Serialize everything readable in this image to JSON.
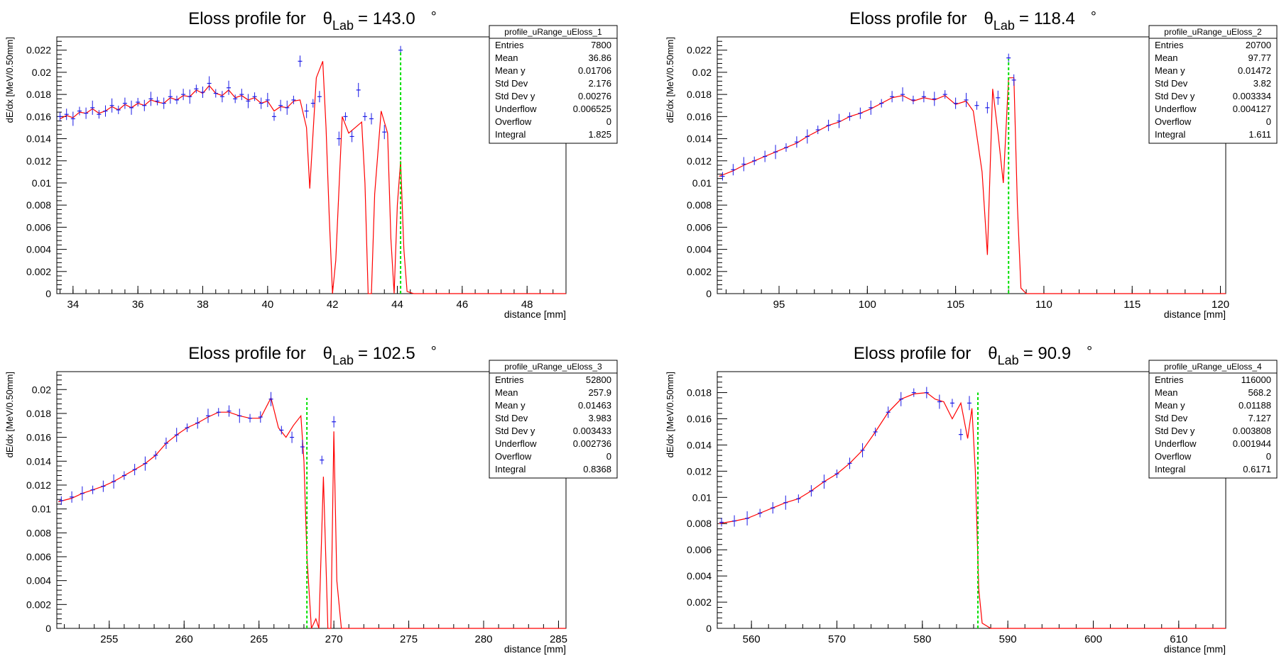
{
  "chart_data": [
    {
      "type": "line",
      "title_prefix": "Eloss profile for",
      "theta_symbol": "θ",
      "theta_subscript": "Lab",
      "angle": "= 143.0",
      "degree_symbol": "°",
      "xlabel": "distance [mm]",
      "ylabel": "dE/dx [MeV/0.50mm]",
      "xlim": [
        33.5,
        49.2
      ],
      "ylim": [
        0,
        0.0232
      ],
      "xticks": [
        "34",
        "36",
        "38",
        "40",
        "42",
        "44",
        "46",
        "48"
      ],
      "yticks": [
        "0",
        "0.002",
        "0.004",
        "0.006",
        "0.008",
        "0.01",
        "0.012",
        "0.014",
        "0.016",
        "0.018",
        "0.02",
        "0.022"
      ],
      "green_line_x": 44.1,
      "green_line_top": 0.022,
      "stats": {
        "name": "profile_uRange_uEloss_1",
        "rows": [
          [
            "Entries",
            "7800"
          ],
          [
            "Mean",
            "36.86"
          ],
          [
            "Mean y",
            "0.01706"
          ],
          [
            "Std Dev",
            "2.176"
          ],
          [
            "Std Dev y",
            "0.00276"
          ],
          [
            "Underflow",
            "0.006525"
          ],
          [
            "Overflow",
            "0"
          ],
          [
            "Integral",
            "1.825"
          ]
        ]
      },
      "series": [
        {
          "legend": "profile points",
          "color": "#1a1ae6",
          "x": [
            33.6,
            33.8,
            34.0,
            34.2,
            34.4,
            34.6,
            34.8,
            35.0,
            35.2,
            35.4,
            35.6,
            35.8,
            36.0,
            36.2,
            36.4,
            36.6,
            36.8,
            37.0,
            37.2,
            37.4,
            37.6,
            37.8,
            38.0,
            38.2,
            38.4,
            38.6,
            38.8,
            39.0,
            39.2,
            39.4,
            39.6,
            39.8,
            40.0,
            40.2,
            40.4,
            40.6,
            40.8,
            41.0,
            41.2,
            41.4,
            41.6,
            42.2,
            42.4,
            42.6,
            42.8,
            43.0,
            43.2,
            43.6,
            44.1
          ],
          "y": [
            0.016,
            0.0162,
            0.0158,
            0.0165,
            0.0163,
            0.0168,
            0.0162,
            0.0165,
            0.017,
            0.0166,
            0.0172,
            0.0168,
            0.0173,
            0.017,
            0.0176,
            0.0174,
            0.0172,
            0.0178,
            0.0175,
            0.018,
            0.0178,
            0.0185,
            0.0182,
            0.019,
            0.0181,
            0.0178,
            0.0186,
            0.0176,
            0.018,
            0.0174,
            0.0178,
            0.0172,
            0.0175,
            0.016,
            0.017,
            0.0168,
            0.0175,
            0.021,
            0.0165,
            0.0172,
            0.0178,
            0.014,
            0.016,
            0.0142,
            0.0184,
            0.016,
            0.0158,
            0.0146,
            0.022
          ]
        },
        {
          "legend": "profile curve",
          "color": "#ff0000",
          "x": [
            33.6,
            33.8,
            34.0,
            34.2,
            34.4,
            34.6,
            34.8,
            35.0,
            35.2,
            35.4,
            35.6,
            35.8,
            36.0,
            36.2,
            36.4,
            36.6,
            36.8,
            37.0,
            37.2,
            37.4,
            37.6,
            37.8,
            38.0,
            38.2,
            38.4,
            38.6,
            38.8,
            39.0,
            39.2,
            39.4,
            39.6,
            39.8,
            40.0,
            40.2,
            40.4,
            40.6,
            40.8,
            41.0,
            41.2,
            41.3,
            41.5,
            41.7,
            41.8,
            41.9,
            42.0,
            42.1,
            42.3,
            42.5,
            42.7,
            42.9,
            43.0,
            43.1,
            43.2,
            43.3,
            43.5,
            43.7,
            43.8,
            43.9,
            44.0,
            44.1,
            44.2,
            44.3,
            44.5,
            49.2
          ],
          "y": [
            0.0158,
            0.0161,
            0.0159,
            0.0164,
            0.0163,
            0.0167,
            0.0163,
            0.0165,
            0.0169,
            0.0166,
            0.0171,
            0.0168,
            0.0172,
            0.017,
            0.0175,
            0.0173,
            0.0172,
            0.0177,
            0.0175,
            0.0179,
            0.0178,
            0.0184,
            0.0181,
            0.0188,
            0.0181,
            0.0179,
            0.0184,
            0.0177,
            0.0179,
            0.0175,
            0.0177,
            0.0172,
            0.0174,
            0.0165,
            0.0169,
            0.0168,
            0.0174,
            0.0175,
            0.015,
            0.0095,
            0.0195,
            0.021,
            0.015,
            0.007,
            0.0,
            0.003,
            0.016,
            0.0145,
            0.015,
            0.0155,
            0.01,
            0.0,
            0.0,
            0.009,
            0.0165,
            0.0145,
            0.005,
            0.0,
            0.008,
            0.012,
            0.004,
            0.0002,
            0.0,
            0.0
          ]
        }
      ]
    },
    {
      "type": "line",
      "title_prefix": "Eloss profile for",
      "theta_symbol": "θ",
      "theta_subscript": "Lab",
      "angle": "= 118.4",
      "degree_symbol": "°",
      "xlabel": "distance [mm]",
      "ylabel": "dE/dx [MeV/0.50mm]",
      "xlim": [
        91.5,
        120.3
      ],
      "ylim": [
        0,
        0.0232
      ],
      "xticks": [
        "95",
        "100",
        "105",
        "110",
        "115",
        "120"
      ],
      "yticks": [
        "0",
        "0.002",
        "0.004",
        "0.006",
        "0.008",
        "0.01",
        "0.012",
        "0.014",
        "0.016",
        "0.018",
        "0.02",
        "0.022"
      ],
      "green_line_x": 108.0,
      "green_line_top": 0.0212,
      "stats": {
        "name": "profile_uRange_uEloss_2",
        "rows": [
          [
            "Entries",
            "20700"
          ],
          [
            "Mean",
            "97.77"
          ],
          [
            "Mean y",
            "0.01472"
          ],
          [
            "Std Dev",
            "3.82"
          ],
          [
            "Std Dev y",
            "0.003334"
          ],
          [
            "Underflow",
            "0.004127"
          ],
          [
            "Overflow",
            "0"
          ],
          [
            "Integral",
            "1.611"
          ]
        ]
      },
      "series": [
        {
          "legend": "profile points",
          "color": "#1a1ae6",
          "x": [
            91.8,
            92.4,
            93.0,
            93.6,
            94.2,
            94.8,
            95.4,
            96.0,
            96.6,
            97.2,
            97.8,
            98.4,
            99.0,
            99.6,
            100.2,
            100.8,
            101.4,
            102.0,
            102.6,
            103.2,
            103.8,
            104.4,
            105.0,
            105.6,
            106.2,
            106.8,
            107.4,
            108.0,
            108.3
          ],
          "y": [
            0.0106,
            0.0112,
            0.0117,
            0.012,
            0.0124,
            0.0128,
            0.0132,
            0.0137,
            0.0142,
            0.0148,
            0.0152,
            0.0156,
            0.016,
            0.0163,
            0.0168,
            0.0172,
            0.0178,
            0.018,
            0.0175,
            0.0178,
            0.0176,
            0.018,
            0.0172,
            0.0175,
            0.017,
            0.0168,
            0.0177,
            0.0213,
            0.0193
          ]
        },
        {
          "legend": "profile curve",
          "color": "#ff0000",
          "x": [
            91.6,
            92.4,
            93.0,
            93.6,
            94.2,
            94.8,
            95.4,
            96.0,
            96.6,
            97.2,
            97.8,
            98.4,
            99.0,
            99.6,
            100.2,
            100.8,
            101.4,
            102.0,
            102.6,
            103.2,
            103.8,
            104.4,
            105.0,
            105.6,
            106.0,
            106.5,
            106.8,
            107.1,
            107.4,
            107.7,
            108.0,
            108.3,
            108.5,
            108.7,
            109.0,
            120.3
          ],
          "y": [
            0.0106,
            0.0111,
            0.0116,
            0.012,
            0.0124,
            0.0128,
            0.0132,
            0.0136,
            0.0142,
            0.0147,
            0.0152,
            0.0155,
            0.016,
            0.0163,
            0.0167,
            0.0172,
            0.0177,
            0.0179,
            0.0174,
            0.0177,
            0.0175,
            0.0179,
            0.0171,
            0.0174,
            0.0165,
            0.011,
            0.0035,
            0.0185,
            0.0145,
            0.01,
            0.0195,
            0.0195,
            0.008,
            0.0005,
            0.0,
            0.0
          ]
        }
      ]
    },
    {
      "type": "line",
      "title_prefix": "Eloss profile for",
      "theta_symbol": "θ",
      "theta_subscript": "Lab",
      "angle": "= 102.5",
      "degree_symbol": "°",
      "xlabel": "distance [mm]",
      "ylabel": "dE/dx [MeV/0.50mm]",
      "xlim": [
        251.5,
        285.5
      ],
      "ylim": [
        0,
        0.0215
      ],
      "xticks": [
        "255",
        "260",
        "265",
        "270",
        "275",
        "280",
        "285"
      ],
      "yticks": [
        "0",
        "0.002",
        "0.004",
        "0.006",
        "0.008",
        "0.01",
        "0.012",
        "0.014",
        "0.016",
        "0.018",
        "0.02"
      ],
      "green_line_x": 268.2,
      "green_line_top": 0.0193,
      "stats": {
        "name": "profile_uRange_uEloss_3",
        "rows": [
          [
            "Entries",
            "52800"
          ],
          [
            "Mean",
            "257.9"
          ],
          [
            "Mean y",
            "0.01463"
          ],
          [
            "Std Dev",
            "3.983"
          ],
          [
            "Std Dev y",
            "0.003433"
          ],
          [
            "Underflow",
            "0.002736"
          ],
          [
            "Overflow",
            "0"
          ],
          [
            "Integral",
            "0.8368"
          ]
        ]
      },
      "series": [
        {
          "legend": "profile points",
          "color": "#1a1ae6",
          "x": [
            251.8,
            252.5,
            253.2,
            253.9,
            254.6,
            255.3,
            256.0,
            256.7,
            257.4,
            258.1,
            258.8,
            259.5,
            260.2,
            260.9,
            261.6,
            262.3,
            263.0,
            263.7,
            264.4,
            265.1,
            265.8,
            266.5,
            267.2,
            267.9,
            269.2,
            270.0
          ],
          "y": [
            0.0107,
            0.011,
            0.0113,
            0.0116,
            0.0119,
            0.0123,
            0.0128,
            0.0133,
            0.0138,
            0.0145,
            0.0155,
            0.0162,
            0.0168,
            0.0172,
            0.0178,
            0.0181,
            0.0182,
            0.0178,
            0.0176,
            0.0177,
            0.0192,
            0.0166,
            0.016,
            0.0152,
            0.0141,
            0.0173
          ]
        },
        {
          "legend": "profile curve",
          "color": "#ff0000",
          "x": [
            251.6,
            252.5,
            253.2,
            253.9,
            254.6,
            255.3,
            256.0,
            256.7,
            257.4,
            258.1,
            258.8,
            259.5,
            260.2,
            260.9,
            261.6,
            262.3,
            263.0,
            263.7,
            264.4,
            265.1,
            265.8,
            266.3,
            266.8,
            267.3,
            267.8,
            268.0,
            268.2,
            268.5,
            268.8,
            269.0,
            269.3,
            269.6,
            269.8,
            270.0,
            270.2,
            270.5,
            271.0,
            285.5
          ],
          "y": [
            0.0106,
            0.0109,
            0.0113,
            0.0116,
            0.0119,
            0.0123,
            0.0128,
            0.0133,
            0.0138,
            0.0145,
            0.0155,
            0.0162,
            0.0168,
            0.0172,
            0.0177,
            0.0181,
            0.0181,
            0.0178,
            0.0176,
            0.0176,
            0.0193,
            0.0168,
            0.016,
            0.017,
            0.0178,
            0.014,
            0.006,
            0.0,
            0.0008,
            0.0,
            0.0127,
            0.0,
            0.0,
            0.0165,
            0.004,
            0.0,
            0.0,
            0.0
          ]
        }
      ]
    },
    {
      "type": "line",
      "title_prefix": "Eloss profile for",
      "theta_symbol": "θ",
      "theta_subscript": "Lab",
      "angle": "= 90.9",
      "degree_symbol": "°",
      "xlabel": "distance [mm]",
      "ylabel": "dE/dx [MeV/0.50mm]",
      "xlim": [
        556,
        615.5
      ],
      "ylim": [
        0,
        0.0196
      ],
      "xticks": [
        "560",
        "570",
        "580",
        "590",
        "600",
        "610"
      ],
      "yticks": [
        "0",
        "0.002",
        "0.004",
        "0.006",
        "0.008",
        "0.01",
        "0.012",
        "0.014",
        "0.016",
        "0.018"
      ],
      "green_line_x": 586.5,
      "green_line_top": 0.018,
      "stats": {
        "name": "profile_uRange_uEloss_4",
        "rows": [
          [
            "Entries",
            "116000"
          ],
          [
            "Mean",
            "568.2"
          ],
          [
            "Mean y",
            "0.01188"
          ],
          [
            "Std Dev",
            "7.127"
          ],
          [
            "Std Dev y",
            "0.003808"
          ],
          [
            "Underflow",
            "0.001944"
          ],
          [
            "Overflow",
            "0"
          ],
          [
            "Integral",
            "0.6171"
          ]
        ]
      },
      "series": [
        {
          "legend": "profile points",
          "color": "#1a1ae6",
          "x": [
            556.5,
            558,
            559.5,
            561,
            562.5,
            564,
            565.5,
            567,
            568.5,
            570,
            571.5,
            573,
            574.5,
            576,
            577.5,
            579,
            580.5,
            582,
            583.5,
            584.5,
            585.5
          ],
          "y": [
            0.0081,
            0.0082,
            0.0084,
            0.0088,
            0.0092,
            0.0096,
            0.0099,
            0.0105,
            0.0112,
            0.0118,
            0.0126,
            0.0136,
            0.015,
            0.0165,
            0.0175,
            0.018,
            0.018,
            0.0173,
            0.0172,
            0.0148,
            0.0172
          ]
        },
        {
          "legend": "profile curve",
          "color": "#ff0000",
          "x": [
            556.2,
            558,
            559.5,
            561,
            562.5,
            564,
            565.5,
            567,
            568.5,
            570,
            571.5,
            573,
            574.5,
            576,
            577.5,
            579,
            580.5,
            581.5,
            582.5,
            583.5,
            584.5,
            585.3,
            585.8,
            586.2,
            586.6,
            587,
            588,
            615.5
          ],
          "y": [
            0.008,
            0.0082,
            0.0084,
            0.0088,
            0.0092,
            0.0096,
            0.0099,
            0.0105,
            0.0112,
            0.0118,
            0.0126,
            0.0136,
            0.015,
            0.0165,
            0.0175,
            0.0179,
            0.018,
            0.0175,
            0.0173,
            0.016,
            0.0172,
            0.0145,
            0.0168,
            0.012,
            0.003,
            0.0004,
            0.0,
            0.0
          ]
        }
      ]
    }
  ]
}
